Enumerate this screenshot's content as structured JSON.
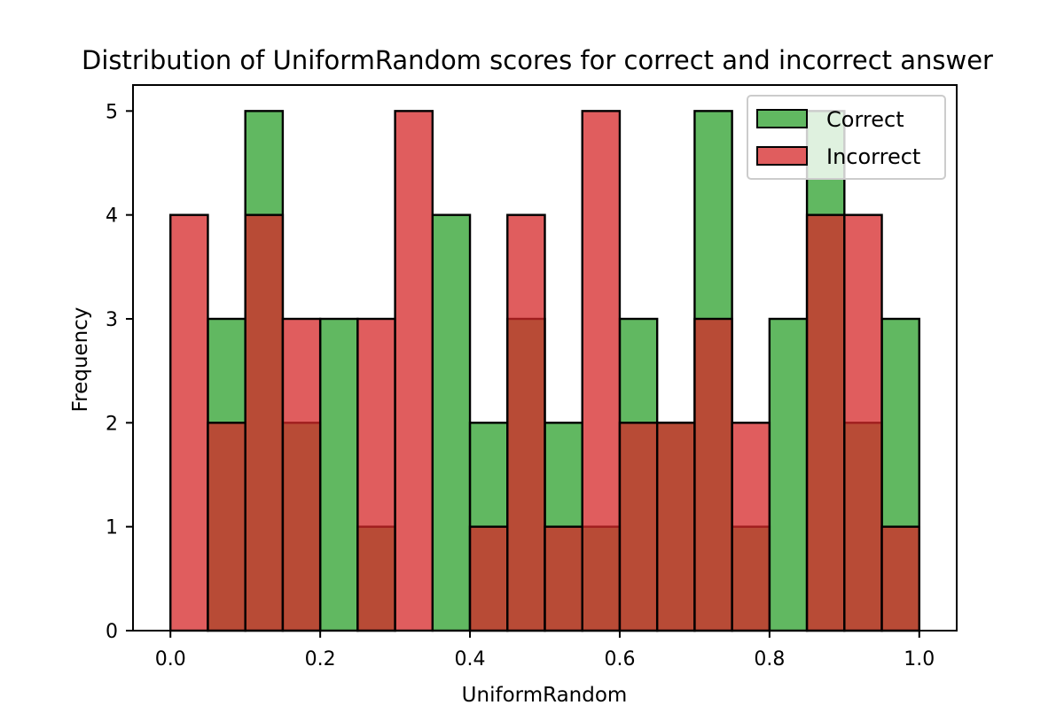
{
  "chart_data": {
    "type": "bar",
    "subtype": "overlapping-histogram",
    "title": "Distribution of UniformRandom scores for correct and incorrect answer",
    "xlabel": "UniformRandom",
    "ylabel": "Frequency",
    "xlim": [
      -0.05,
      1.05
    ],
    "ylim": [
      0,
      5.25
    ],
    "xticks": [
      "0.0",
      "0.2",
      "0.4",
      "0.6",
      "0.8",
      "1.0"
    ],
    "yticks": [
      "0",
      "1",
      "2",
      "3",
      "4",
      "5"
    ],
    "bin_edges": [
      0.0,
      0.05,
      0.1,
      0.15,
      0.2,
      0.25,
      0.3,
      0.35,
      0.4,
      0.45,
      0.5,
      0.55,
      0.6,
      0.65,
      0.7,
      0.75,
      0.8,
      0.85,
      0.9,
      0.95,
      1.0
    ],
    "grid": false,
    "legend_position": "top-right",
    "series": [
      {
        "name": "Correct",
        "color": "#2ca02c",
        "values": [
          0,
          3,
          5,
          2,
          3,
          1,
          0,
          4,
          2,
          3,
          2,
          1,
          3,
          2,
          5,
          1,
          3,
          5,
          2,
          3
        ]
      },
      {
        "name": "Incorrect",
        "color": "#d62728",
        "values": [
          4,
          2,
          4,
          3,
          0,
          3,
          5,
          0,
          1,
          4,
          1,
          5,
          2,
          2,
          3,
          2,
          0,
          4,
          4,
          1
        ]
      }
    ]
  }
}
